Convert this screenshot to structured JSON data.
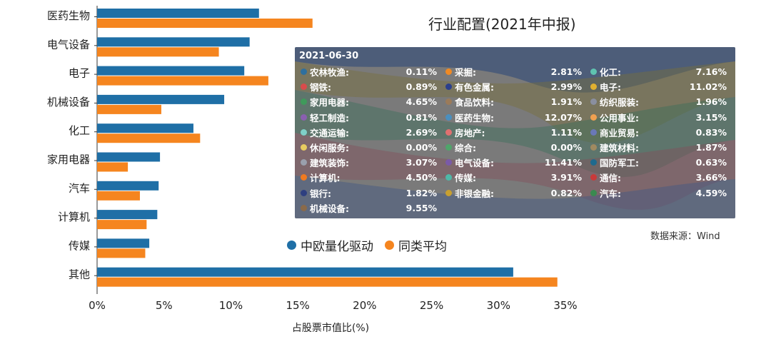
{
  "chart_data": {
    "type": "bar",
    "orientation": "horizontal",
    "xlabel": "占股票市值比(%)",
    "categories": [
      "医药生物",
      "电气设备",
      "电子",
      "机械设备",
      "化工",
      "家用电器",
      "汽车",
      "计算机",
      "传媒",
      "其他"
    ],
    "series": [
      {
        "name": "中欧量化驱动",
        "color": "#1f6fa6",
        "values": [
          12.1,
          11.4,
          11.0,
          9.5,
          7.2,
          4.7,
          4.6,
          4.5,
          3.9,
          31.1
        ]
      },
      {
        "name": "同类平均",
        "color": "#f5851f",
        "values": [
          16.1,
          9.1,
          12.8,
          4.8,
          7.7,
          2.3,
          3.2,
          3.7,
          3.6,
          34.4
        ]
      }
    ],
    "xlim": [
      0,
      35
    ],
    "xticks": [
      "0%",
      "5%",
      "10%",
      "15%",
      "20%",
      "25%",
      "30%",
      "35%"
    ],
    "grid": false,
    "legend_position": "bottom-center"
  },
  "overlay": {
    "title": "行业配置(2021年中报)",
    "source": "数据来源：Wind",
    "tooltip": {
      "date": "2021-06-30",
      "items": [
        {
          "name": "农林牧渔:",
          "value": "0.11%",
          "color": "#2e6f9e"
        },
        {
          "name": "采掘:",
          "value": "2.81%",
          "color": "#f08a24"
        },
        {
          "name": "化工:",
          "value": "7.16%",
          "color": "#5fc3b0"
        },
        {
          "name": "钢铁:",
          "value": "0.89%",
          "color": "#d94b4b"
        },
        {
          "name": "有色金属:",
          "value": "2.99%",
          "color": "#2b3f8c"
        },
        {
          "name": "电子:",
          "value": "11.02%",
          "color": "#e0b030"
        },
        {
          "name": "家用电器:",
          "value": "4.65%",
          "color": "#3f9a5b"
        },
        {
          "name": "食品饮料:",
          "value": "1.91%",
          "color": "#9b7b5a"
        },
        {
          "name": "纺织服装:",
          "value": "1.96%",
          "color": "#8a8fa0"
        },
        {
          "name": "轻工制造:",
          "value": "0.81%",
          "color": "#8a5fb0"
        },
        {
          "name": "医药生物:",
          "value": "12.07%",
          "color": "#4a8fbf"
        },
        {
          "name": "公用事业:",
          "value": "3.15%",
          "color": "#f0a050"
        },
        {
          "name": "交通运输:",
          "value": "2.69%",
          "color": "#7fd0c8"
        },
        {
          "name": "房地产:",
          "value": "1.11%",
          "color": "#e07070"
        },
        {
          "name": "商业贸易:",
          "value": "0.83%",
          "color": "#6a78b8"
        },
        {
          "name": "休闲服务:",
          "value": "0.00%",
          "color": "#e8cc60"
        },
        {
          "name": "综合:",
          "value": "0.00%",
          "color": "#4fa56a"
        },
        {
          "name": "建筑材料:",
          "value": "1.87%",
          "color": "#a08a60"
        },
        {
          "name": "建筑装饰:",
          "value": "3.07%",
          "color": "#9aa0ad"
        },
        {
          "name": "电气设备:",
          "value": "11.41%",
          "color": "#7a5aa8"
        },
        {
          "name": "国防军工:",
          "value": "0.63%",
          "color": "#1e6a8e"
        },
        {
          "name": "计算机:",
          "value": "4.50%",
          "color": "#f07a20"
        },
        {
          "name": "传媒:",
          "value": "3.91%",
          "color": "#4fb8a8"
        },
        {
          "name": "通信:",
          "value": "3.66%",
          "color": "#c83a3a"
        },
        {
          "name": "银行:",
          "value": "1.82%",
          "color": "#2e3f80"
        },
        {
          "name": "非银金融:",
          "value": "0.82%",
          "color": "#c8a030"
        },
        {
          "name": "汽车:",
          "value": "4.59%",
          "color": "#3a8a50"
        },
        {
          "name": "机械设备:",
          "value": "9.55%",
          "color": "#8a6a4a"
        }
      ]
    }
  }
}
